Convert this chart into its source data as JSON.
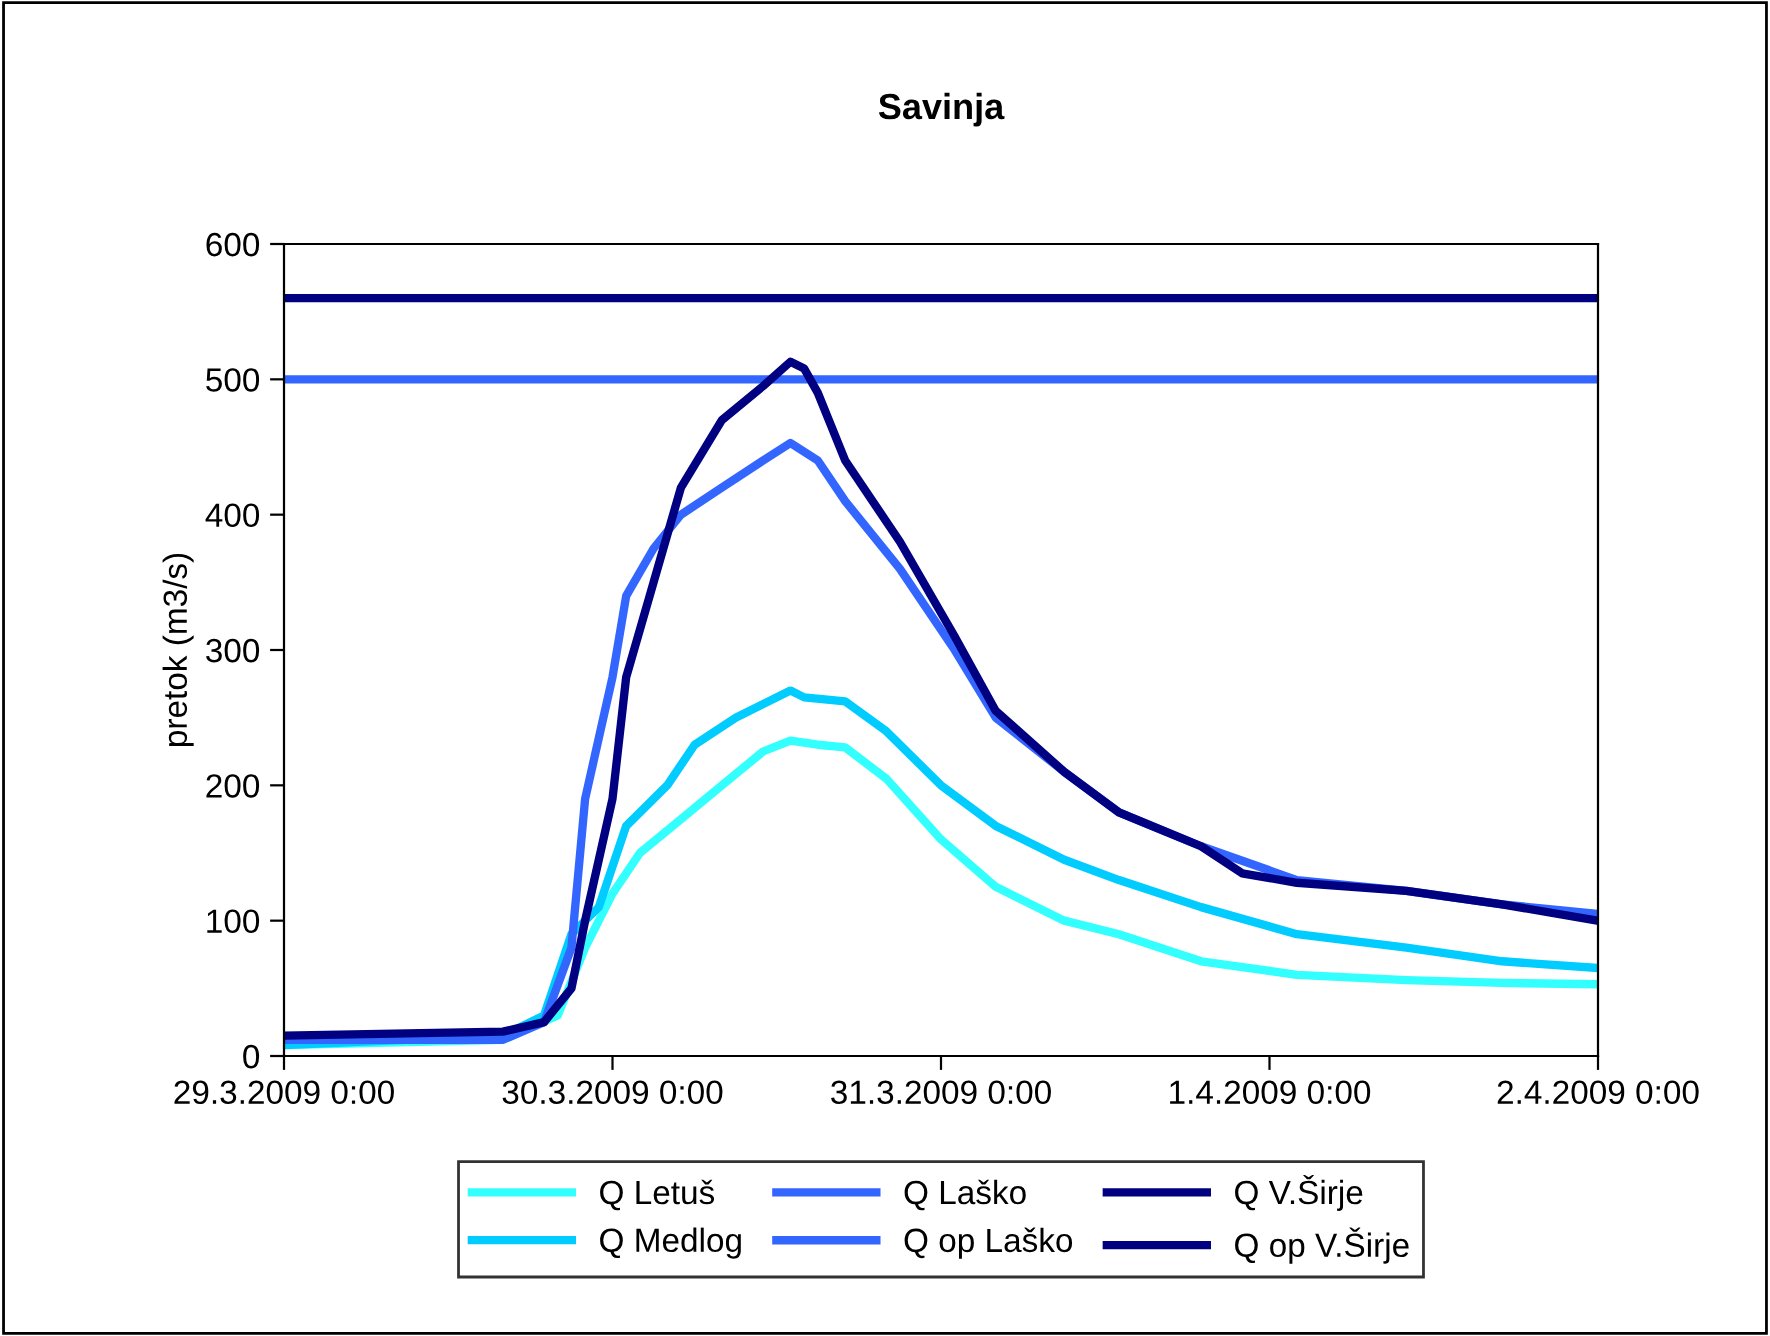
{
  "chart_data": {
    "type": "line",
    "title": "Savinja",
    "ylabel": "pretok (m3/s)",
    "xlim": [
      "2009-03-29T00:00",
      "2009-04-02T00:00"
    ],
    "xticks": [
      {
        "value": "2009-03-29T00:00",
        "label": "29.3.2009 0:00"
      },
      {
        "value": "2009-03-30T00:00",
        "label": "30.3.2009 0:00"
      },
      {
        "value": "2009-03-31T00:00",
        "label": "31.3.2009 0:00"
      },
      {
        "value": "2009-04-01T00:00",
        "label": "1.4.2009 0:00"
      },
      {
        "value": "2009-04-02T00:00",
        "label": "2.4.2009 0:00"
      }
    ],
    "ylim": [
      0,
      600
    ],
    "yticks": [
      0,
      100,
      200,
      300,
      400,
      500,
      600
    ],
    "grid": false,
    "legend": "bottom",
    "marker": "none",
    "line_style": "solid",
    "series": [
      {
        "name": "Q Letuš",
        "color": "#33ffff",
        "x": [
          "2009-03-29T00:00",
          "2009-03-29T16:00",
          "2009-03-29T20:00",
          "2009-03-29T22:00",
          "2009-03-30T00:00",
          "2009-03-30T02:00",
          "2009-03-30T05:00",
          "2009-03-30T08:00",
          "2009-03-30T11:00",
          "2009-03-30T13:00",
          "2009-03-30T15:00",
          "2009-03-30T17:00",
          "2009-03-30T20:00",
          "2009-03-31T00:00",
          "2009-03-31T04:00",
          "2009-03-31T09:00",
          "2009-03-31T13:00",
          "2009-03-31T19:00",
          "2009-04-01T02:00",
          "2009-04-01T10:00",
          "2009-04-01T17:00",
          "2009-04-02T00:00"
        ],
        "values": [
          8,
          12,
          30,
          80,
          120,
          150,
          175,
          200,
          225,
          233,
          230,
          228,
          205,
          160,
          125,
          100,
          90,
          70,
          60,
          56,
          54,
          53
        ]
      },
      {
        "name": "Q Medlog",
        "color": "#00ccff",
        "x": [
          "2009-03-29T00:00",
          "2009-03-29T16:00",
          "2009-03-29T19:00",
          "2009-03-29T21:00",
          "2009-03-29T23:00",
          "2009-03-30T01:00",
          "2009-03-30T04:00",
          "2009-03-30T06:00",
          "2009-03-30T09:00",
          "2009-03-30T13:00",
          "2009-03-30T14:00",
          "2009-03-30T17:00",
          "2009-03-30T20:00",
          "2009-03-31T00:00",
          "2009-03-31T04:00",
          "2009-03-31T09:00",
          "2009-03-31T13:00",
          "2009-03-31T19:00",
          "2009-04-01T02:00",
          "2009-04-01T10:00",
          "2009-04-01T17:00",
          "2009-04-02T00:00"
        ],
        "values": [
          8,
          15,
          30,
          90,
          110,
          170,
          200,
          230,
          250,
          270,
          265,
          262,
          240,
          200,
          170,
          145,
          130,
          110,
          90,
          80,
          70,
          65
        ]
      },
      {
        "name": "Q Laško",
        "color": "#3366ff",
        "x": [
          "2009-03-29T00:00",
          "2009-03-29T16:00",
          "2009-03-29T19:00",
          "2009-03-29T21:00",
          "2009-03-29T22:00",
          "2009-03-30T00:00",
          "2009-03-30T01:00",
          "2009-03-30T03:00",
          "2009-03-30T05:00",
          "2009-03-30T08:00",
          "2009-03-30T11:00",
          "2009-03-30T13:00",
          "2009-03-30T15:00",
          "2009-03-30T17:00",
          "2009-03-30T21:00",
          "2009-03-31T01:00",
          "2009-03-31T04:00",
          "2009-03-31T09:00",
          "2009-03-31T13:00",
          "2009-03-31T19:00",
          "2009-04-01T02:00",
          "2009-04-01T10:00",
          "2009-04-01T17:00",
          "2009-04-02T00:00"
        ],
        "values": [
          12,
          12,
          25,
          80,
          190,
          280,
          340,
          375,
          400,
          420,
          440,
          453,
          440,
          410,
          360,
          300,
          250,
          210,
          180,
          155,
          130,
          122,
          112,
          105
        ]
      },
      {
        "name": "Q op Laško",
        "color": "#3366ff",
        "x": [
          "2009-03-29T00:00",
          "2009-04-02T00:00"
        ],
        "values": [
          500,
          500
        ]
      },
      {
        "name": "Q V.Širje",
        "color": "#000080",
        "x": [
          "2009-03-29T00:00",
          "2009-03-29T16:00",
          "2009-03-29T19:00",
          "2009-03-29T21:00",
          "2009-03-29T22:00",
          "2009-03-30T00:00",
          "2009-03-30T01:00",
          "2009-03-30T03:00",
          "2009-03-30T05:00",
          "2009-03-30T08:00",
          "2009-03-30T11:00",
          "2009-03-30T13:00",
          "2009-03-30T14:00",
          "2009-03-30T15:00",
          "2009-03-30T17:00",
          "2009-03-30T21:00",
          "2009-03-31T01:00",
          "2009-03-31T04:00",
          "2009-03-31T09:00",
          "2009-03-31T13:00",
          "2009-03-31T19:00",
          "2009-03-31T22:00",
          "2009-04-01T02:00",
          "2009-04-01T10:00",
          "2009-04-01T17:00",
          "2009-04-02T00:00"
        ],
        "values": [
          15,
          18,
          25,
          50,
          100,
          190,
          280,
          350,
          420,
          470,
          495,
          513,
          508,
          490,
          440,
          380,
          310,
          255,
          210,
          180,
          155,
          135,
          128,
          122,
          112,
          100
        ]
      },
      {
        "name": "Q op V.Širje",
        "color": "#000080",
        "x": [
          "2009-03-29T00:00",
          "2009-04-02T00:00"
        ],
        "values": [
          560,
          560
        ]
      }
    ]
  }
}
